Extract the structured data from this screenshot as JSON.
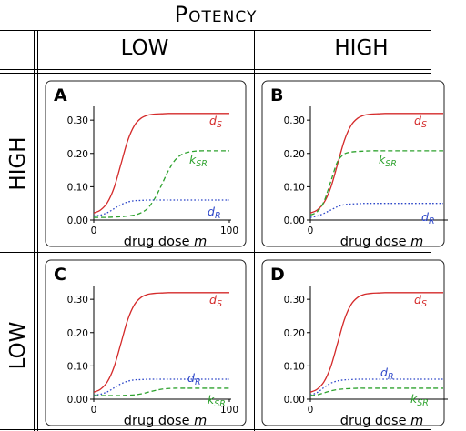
{
  "figure": {
    "title": "Potency",
    "column_headers": [
      "LOW",
      "HIGH"
    ],
    "row_headers": [
      "HIGH",
      "LOW"
    ]
  },
  "colors": {
    "ds": "#d42a2a",
    "ksr": "#2ea22e",
    "dr": "#2b45c8"
  },
  "chart_data": [
    {
      "type": "line",
      "panel": "A",
      "xlabel": "drug dose m",
      "xlim": [
        0,
        100
      ],
      "ylim": [
        0,
        0.34
      ],
      "x_ticks": [
        "0",
        "100"
      ],
      "y_ticks": [
        "0.00",
        "0.10",
        "0.20",
        "0.30"
      ],
      "x": [
        0,
        5,
        10,
        15,
        20,
        25,
        30,
        35,
        40,
        45,
        50,
        55,
        60,
        65,
        70,
        75,
        80,
        85,
        90,
        95,
        100
      ],
      "series": [
        {
          "name": "dS",
          "label_main": "d",
          "label_sub": "S",
          "style": "solid",
          "values": [
            0.021,
            0.03,
            0.052,
            0.097,
            0.167,
            0.238,
            0.284,
            0.306,
            0.315,
            0.318,
            0.319,
            0.32,
            0.32,
            0.32,
            0.32,
            0.32,
            0.32,
            0.32,
            0.32,
            0.32,
            0.32
          ]
        },
        {
          "name": "kSR",
          "label_main": "k",
          "label_sub": "SR",
          "style": "dashed",
          "values": [
            0.008,
            0.008,
            0.008,
            0.009,
            0.01,
            0.012,
            0.015,
            0.022,
            0.036,
            0.065,
            0.105,
            0.148,
            0.18,
            0.197,
            0.204,
            0.207,
            0.208,
            0.208,
            0.208,
            0.208,
            0.208
          ]
        },
        {
          "name": "dR",
          "label_main": "d",
          "label_sub": "R",
          "style": "dotted",
          "values": [
            0.012,
            0.015,
            0.022,
            0.034,
            0.046,
            0.054,
            0.058,
            0.059,
            0.06,
            0.06,
            0.06,
            0.06,
            0.06,
            0.06,
            0.06,
            0.06,
            0.06,
            0.06,
            0.06,
            0.06,
            0.06
          ]
        }
      ]
    },
    {
      "type": "line",
      "panel": "B",
      "xlabel": "drug dose m",
      "xlim": [
        0,
        100
      ],
      "ylim": [
        0,
        0.34
      ],
      "x_ticks": [
        "0"
      ],
      "y_ticks": [
        "0.00",
        "0.10",
        "0.20",
        "0.30"
      ],
      "x": [
        0,
        5,
        10,
        15,
        20,
        25,
        30,
        35,
        40,
        45,
        50,
        55,
        60,
        65,
        70,
        75,
        80,
        85,
        90,
        95,
        100
      ],
      "series": [
        {
          "name": "dS",
          "label_main": "d",
          "label_sub": "S",
          "style": "solid",
          "values": [
            0.021,
            0.03,
            0.052,
            0.097,
            0.167,
            0.238,
            0.284,
            0.306,
            0.315,
            0.318,
            0.319,
            0.32,
            0.32,
            0.32,
            0.32,
            0.32,
            0.32,
            0.32,
            0.32,
            0.32,
            0.32
          ]
        },
        {
          "name": "kSR",
          "label_main": "k",
          "label_sub": "SR",
          "style": "dashed",
          "values": [
            0.015,
            0.025,
            0.055,
            0.115,
            0.175,
            0.198,
            0.204,
            0.206,
            0.207,
            0.208,
            0.208,
            0.208,
            0.208,
            0.208,
            0.208,
            0.208,
            0.208,
            0.208,
            0.208,
            0.208,
            0.208
          ]
        },
        {
          "name": "dR",
          "label_main": "d",
          "label_sub": "R",
          "style": "dotted",
          "values": [
            0.008,
            0.012,
            0.02,
            0.03,
            0.04,
            0.046,
            0.048,
            0.049,
            0.05,
            0.05,
            0.05,
            0.05,
            0.05,
            0.05,
            0.05,
            0.05,
            0.05,
            0.05,
            0.05,
            0.05,
            0.05
          ]
        }
      ]
    },
    {
      "type": "line",
      "panel": "C",
      "xlabel": "drug dose m",
      "xlim": [
        0,
        100
      ],
      "ylim": [
        0,
        0.34
      ],
      "x_ticks": [
        "0",
        "100"
      ],
      "y_ticks": [
        "0.00",
        "0.10",
        "0.20",
        "0.30"
      ],
      "x": [
        0,
        5,
        10,
        15,
        20,
        25,
        30,
        35,
        40,
        45,
        50,
        55,
        60,
        65,
        70,
        75,
        80,
        85,
        90,
        95,
        100
      ],
      "series": [
        {
          "name": "dS",
          "label_main": "d",
          "label_sub": "S",
          "style": "solid",
          "values": [
            0.021,
            0.03,
            0.052,
            0.097,
            0.167,
            0.238,
            0.284,
            0.306,
            0.315,
            0.318,
            0.319,
            0.32,
            0.32,
            0.32,
            0.32,
            0.32,
            0.32,
            0.32,
            0.32,
            0.32,
            0.32
          ]
        },
        {
          "name": "dR",
          "label_main": "d",
          "label_sub": "R",
          "style": "dotted",
          "values": [
            0.012,
            0.015,
            0.022,
            0.034,
            0.046,
            0.054,
            0.058,
            0.059,
            0.06,
            0.06,
            0.06,
            0.06,
            0.06,
            0.06,
            0.06,
            0.06,
            0.06,
            0.06,
            0.06,
            0.06,
            0.06
          ]
        },
        {
          "name": "kSR",
          "label_main": "k",
          "label_sub": "SR",
          "style": "dashed",
          "values": [
            0.011,
            0.011,
            0.011,
            0.011,
            0.011,
            0.012,
            0.013,
            0.016,
            0.021,
            0.026,
            0.03,
            0.032,
            0.033,
            0.033,
            0.033,
            0.033,
            0.033,
            0.033,
            0.033,
            0.033,
            0.033
          ]
        }
      ]
    },
    {
      "type": "line",
      "panel": "D",
      "xlabel": "drug dose m",
      "xlim": [
        0,
        100
      ],
      "ylim": [
        0,
        0.34
      ],
      "x_ticks": [
        "0"
      ],
      "y_ticks": [
        "0.00",
        "0.10",
        "0.20",
        "0.30"
      ],
      "x": [
        0,
        5,
        10,
        15,
        20,
        25,
        30,
        35,
        40,
        45,
        50,
        55,
        60,
        65,
        70,
        75,
        80,
        85,
        90,
        95,
        100
      ],
      "series": [
        {
          "name": "dS",
          "label_main": "d",
          "label_sub": "S",
          "style": "solid",
          "values": [
            0.021,
            0.03,
            0.052,
            0.097,
            0.167,
            0.238,
            0.284,
            0.306,
            0.315,
            0.318,
            0.319,
            0.32,
            0.32,
            0.32,
            0.32,
            0.32,
            0.32,
            0.32,
            0.32,
            0.32,
            0.32
          ]
        },
        {
          "name": "dR",
          "label_main": "d",
          "label_sub": "R",
          "style": "dotted",
          "values": [
            0.012,
            0.02,
            0.035,
            0.048,
            0.055,
            0.058,
            0.059,
            0.06,
            0.06,
            0.06,
            0.06,
            0.06,
            0.06,
            0.06,
            0.06,
            0.06,
            0.06,
            0.06,
            0.06,
            0.06,
            0.06
          ]
        },
        {
          "name": "kSR",
          "label_main": "k",
          "label_sub": "SR",
          "style": "dashed",
          "values": [
            0.011,
            0.013,
            0.019,
            0.025,
            0.029,
            0.031,
            0.032,
            0.033,
            0.033,
            0.033,
            0.033,
            0.033,
            0.033,
            0.033,
            0.033,
            0.033,
            0.033,
            0.033,
            0.033,
            0.033,
            0.033
          ]
        }
      ]
    }
  ]
}
